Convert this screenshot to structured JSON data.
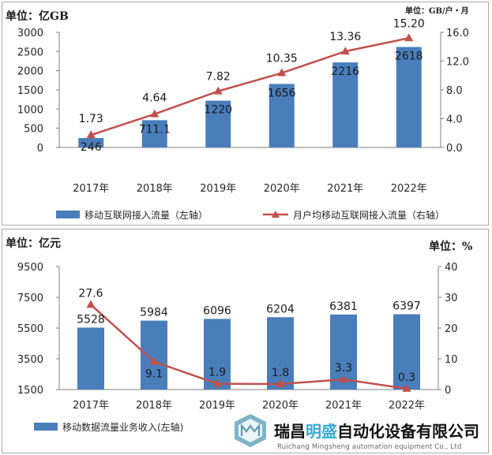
{
  "charts": [
    {
      "type": "bar+line",
      "unit_left": "单位：亿GB",
      "unit_right": "单位：GB/户・月",
      "categories": [
        "2017年",
        "2018年",
        "2019年",
        "2020年",
        "2021年",
        "2022年"
      ],
      "bar_series": {
        "name": "移动互联网接入流量（左轴）",
        "values": [
          246,
          711.1,
          1220,
          1656,
          2216,
          2618
        ],
        "labels": [
          "246",
          "711.1",
          "1220",
          "1656",
          "2216",
          "2618"
        ],
        "color": "#4a7ebb"
      },
      "line_series": {
        "name": "月户均移动互联网接入流量（右轴）",
        "values": [
          1.73,
          4.64,
          7.82,
          10.35,
          13.36,
          15.2
        ],
        "labels": [
          "1.73",
          "4.64",
          "7.82",
          "10.35",
          "13.36",
          "15.20"
        ],
        "color": "#c0504d"
      },
      "left_ticks": [
        "3000",
        "2500",
        "2000",
        "1500",
        "1000",
        "500",
        "0"
      ],
      "right_ticks": [
        "16.0",
        "12.0",
        "8.0",
        "4.0",
        "0.0"
      ],
      "ylim_left": [
        0,
        3000
      ],
      "ylim_right": [
        0,
        16
      ],
      "legend_position": "bottom"
    },
    {
      "type": "bar+line",
      "unit_left": "单位：亿元",
      "unit_right": "单位：%",
      "categories": [
        "2017年",
        "2018年",
        "2019年",
        "2020年",
        "2021年",
        "2022年"
      ],
      "bar_series": {
        "name": "移动数据流量业务收入(左轴)",
        "values": [
          5528,
          5984,
          6096,
          6204,
          6381,
          6397
        ],
        "labels": [
          "5528",
          "5984",
          "6096",
          "6204",
          "6381",
          "6397"
        ],
        "color": "#4a7ebb"
      },
      "line_series": {
        "name": "",
        "values": [
          27.6,
          9.1,
          1.9,
          1.8,
          3.3,
          0.3
        ],
        "labels": [
          "27.6",
          "9.1",
          "1.9",
          "1.8",
          "3.3",
          "0.3"
        ],
        "color": "#c0504d"
      },
      "left_ticks": [
        "9500",
        "7500",
        "5500",
        "3500",
        "1500"
      ],
      "right_ticks": [
        "40",
        "30",
        "20",
        "10",
        "0"
      ],
      "ylim_left": [
        1500,
        9500
      ],
      "ylim_right": [
        0,
        40
      ],
      "legend_position": "bottom-left"
    }
  ],
  "watermark": {
    "name_part1": "瑞昌",
    "name_accent": "明盛",
    "name_part2": "自动化设备有限公司",
    "english": "Ruichang Mingsheng automation equipment Co., Ltd"
  }
}
